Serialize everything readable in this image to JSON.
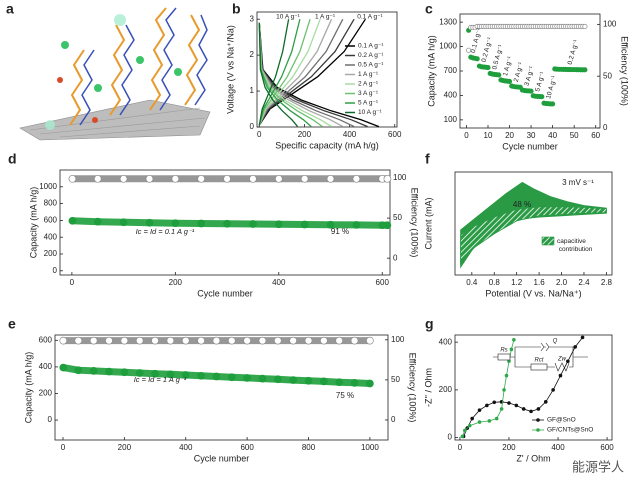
{
  "illustration": {
    "panel": "a"
  },
  "watermark": "能源学人",
  "chart_data": [
    {
      "type": "line",
      "panel": "b",
      "xlabel": "Specific capacity (mA h/g)",
      "ylabel": "Voltage (V vs Na⁺/Na)",
      "xlim": [
        -10,
        610
      ],
      "ylim": [
        0,
        3.2
      ],
      "xticks": [
        0,
        200,
        400,
        600
      ],
      "yticks": [
        0,
        1,
        2,
        3
      ],
      "legend": "right",
      "annotations": [
        "10 A g⁻¹",
        "1 A g⁻¹",
        "0.1 A g⁻¹"
      ],
      "series": [
        {
          "name": "0.1 A g⁻¹",
          "color": "#000000",
          "x": [
            0,
            16,
            80,
            186,
            318,
            451,
            530,
            null,
            0,
            47,
            141,
            259,
            376,
            470
          ],
          "values": [
            2.9,
            1.6,
            1.1,
            0.75,
            0.45,
            0.2,
            0.01,
            null,
            0.05,
            0.5,
            0.9,
            1.4,
            2.1,
            3.0
          ]
        },
        {
          "name": "0.2 A g⁻¹",
          "color": "#3a3a3a",
          "x": [
            0,
            14,
            72,
            168,
            288,
            408,
            480,
            null,
            0,
            42,
            126,
            231,
            336,
            420
          ],
          "values": [
            2.9,
            1.6,
            1.1,
            0.75,
            0.45,
            0.2,
            0.01,
            null,
            0.05,
            0.5,
            0.9,
            1.4,
            2.1,
            3.0
          ]
        },
        {
          "name": "0.5 A g⁻¹",
          "color": "#6e6e6e",
          "x": [
            0,
            13,
            63,
            147,
            252,
            357,
            420,
            null,
            0,
            37,
            111,
            204,
            296,
            370
          ],
          "values": [
            2.9,
            1.6,
            1.1,
            0.75,
            0.45,
            0.2,
            0.01,
            null,
            0.05,
            0.5,
            0.9,
            1.4,
            2.1,
            3.0
          ]
        },
        {
          "name": "1 A g⁻¹",
          "color": "#a8a8a8",
          "x": [
            0,
            11,
            56,
            130,
            222,
            315,
            370,
            null,
            0,
            32,
            96,
            176,
            256,
            320
          ],
          "values": [
            2.9,
            1.6,
            1.1,
            0.75,
            0.45,
            0.2,
            0.01,
            null,
            0.05,
            0.5,
            0.9,
            1.4,
            2.1,
            3.0
          ]
        },
        {
          "name": "2 A g⁻¹",
          "color": "#a6dca0",
          "x": [
            0,
            10,
            48,
            112,
            192,
            272,
            320,
            null,
            0,
            27,
            81,
            149,
            216,
            270
          ],
          "values": [
            2.9,
            1.6,
            1.1,
            0.75,
            0.45,
            0.2,
            0.01,
            null,
            0.05,
            0.5,
            0.9,
            1.4,
            2.1,
            3.0
          ]
        },
        {
          "name": "3 A g⁻¹",
          "color": "#6cc070",
          "x": [
            0,
            8,
            42,
            98,
            168,
            238,
            280,
            null,
            0,
            23,
            68,
            124,
            180,
            225
          ],
          "values": [
            2.9,
            1.6,
            1.1,
            0.75,
            0.45,
            0.2,
            0.01,
            null,
            0.05,
            0.5,
            0.9,
            1.4,
            2.1,
            3.0
          ]
        },
        {
          "name": "5 A g⁻¹",
          "color": "#2f9e46",
          "x": [
            0,
            7,
            35,
            81,
            138,
            196,
            230,
            null,
            0,
            18,
            54,
            99,
            144,
            180
          ],
          "values": [
            2.9,
            1.6,
            1.1,
            0.75,
            0.45,
            0.2,
            0.01,
            null,
            0.05,
            0.5,
            0.9,
            1.4,
            2.1,
            3.0
          ]
        },
        {
          "name": "10 A g⁻¹",
          "color": "#0b6b2a",
          "x": [
            0,
            5,
            26,
            60,
            102,
            145,
            170,
            null,
            0,
            13,
            39,
            72,
            104,
            130
          ],
          "values": [
            2.9,
            1.6,
            1.1,
            0.75,
            0.45,
            0.2,
            0.01,
            null,
            0.05,
            0.5,
            0.9,
            1.4,
            2.1,
            3.0
          ]
        }
      ]
    },
    {
      "type": "scatter",
      "panel": "c",
      "xlabel": "Cycle number",
      "ylabel": "Capacity (mA h/g)",
      "y2label": "Efficiency (100%)",
      "xlim": [
        -3,
        62
      ],
      "ylim": [
        0,
        1400
      ],
      "y2lim": [
        0,
        110
      ],
      "xticks": [
        0,
        10,
        20,
        30,
        40,
        50,
        60
      ],
      "yticks": [
        100,
        400,
        700,
        1000,
        1300
      ],
      "y2ticks": [
        0,
        50,
        100
      ],
      "annotations": [
        "0.1 A g⁻¹",
        "0.2 A g⁻¹",
        "0.5 A g⁻¹",
        "1 A g⁻¹",
        "2 A g⁻¹",
        "3 A g⁻¹",
        "5 A g⁻¹",
        "10 A g⁻¹",
        "0.2 A g⁻¹"
      ],
      "x": [
        1,
        2,
        3,
        4,
        5,
        6,
        7,
        8,
        9,
        10,
        11,
        12,
        13,
        14,
        15,
        16,
        17,
        18,
        19,
        20,
        21,
        22,
        23,
        24,
        25,
        26,
        27,
        28,
        29,
        30,
        31,
        32,
        33,
        34,
        35,
        36,
        37,
        38,
        39,
        40,
        41,
        42,
        43,
        44,
        45,
        46,
        47,
        48,
        49,
        50,
        51,
        52,
        53,
        54,
        55
      ],
      "series": [
        {
          "color": "#1e9e3c",
          "values": [
            1200,
            870,
            860,
            855,
            850,
            760,
            752,
            748,
            745,
            742,
            670,
            662,
            658,
            655,
            652,
            590,
            582,
            578,
            575,
            572,
            515,
            508,
            505,
            502,
            500,
            465,
            460,
            457,
            455,
            453,
            395,
            390,
            388,
            386,
            385,
            305,
            300,
            298,
            296,
            295,
            725,
            722,
            720,
            720,
            719,
            719,
            718,
            718,
            717,
            717,
            716,
            716,
            715,
            715,
            714
          ]
        },
        {
          "color": "#8c8c8c",
          "axis": "y2",
          "values": [
            75,
            97,
            97,
            97,
            98,
            98,
            98,
            98,
            98,
            98,
            98,
            98,
            98,
            98,
            98,
            98,
            98,
            98,
            98,
            98,
            98,
            98,
            98,
            98,
            98,
            98,
            98,
            98,
            98,
            98,
            98,
            98,
            98,
            98,
            98,
            98,
            98,
            98,
            98,
            98,
            98,
            98,
            98,
            98,
            98,
            98,
            98,
            98,
            98,
            98,
            98,
            98,
            98,
            98,
            98
          ]
        }
      ]
    },
    {
      "type": "scatter",
      "panel": "d",
      "xlabel": "Cycle number",
      "ylabel": "Capacity (mA h/g)",
      "y2label": "Efficiency (100%)",
      "xlim": [
        -23,
        615
      ],
      "ylim": [
        -50,
        1200
      ],
      "y2lim": [
        -21,
        110
      ],
      "xticks": [
        0,
        200,
        400,
        600
      ],
      "yticks": [
        0,
        200,
        400,
        600,
        800,
        1000
      ],
      "y2ticks": [
        0,
        50,
        100
      ],
      "connected": true,
      "annotations": [
        "Ic = Id = 0.1 A g⁻¹",
        "91 %"
      ],
      "x": [
        1,
        50,
        100,
        150,
        200,
        250,
        300,
        350,
        400,
        450,
        500,
        550,
        600,
        610
      ],
      "series": [
        {
          "color": "#1e9e3c",
          "values": [
            595,
            585,
            578,
            572,
            567,
            563,
            560,
            557,
            554,
            551,
            548,
            546,
            543,
            542
          ]
        },
        {
          "color": "#8c8c8c",
          "axis": "y2",
          "values": [
            99,
            99,
            99,
            99,
            99,
            99,
            99,
            99,
            99,
            99,
            99,
            99,
            99,
            99
          ]
        }
      ]
    },
    {
      "type": "scatter",
      "panel": "e",
      "xlabel": "Cycle number",
      "ylabel": "Capacity (mA h/g)",
      "y2label": "Efficiency (100%)",
      "xlim": [
        -26,
        1059
      ],
      "ylim": [
        -150,
        640
      ],
      "y2lim": [
        -25,
        106
      ],
      "xticks": [
        0,
        200,
        400,
        600,
        800,
        1000
      ],
      "yticks": [
        0,
        200,
        400,
        600
      ],
      "y2ticks": [
        0,
        50,
        100
      ],
      "connected": true,
      "annotations": [
        "Ic = Id = 1 A g⁻¹",
        "75 %"
      ],
      "x": [
        1,
        50,
        100,
        150,
        200,
        250,
        300,
        350,
        400,
        450,
        500,
        550,
        600,
        650,
        700,
        750,
        800,
        850,
        900,
        950,
        1000
      ],
      "series": [
        {
          "color": "#1e9e3c",
          "values": [
            395,
            375,
            370,
            365,
            360,
            354,
            349,
            344,
            339,
            333,
            328,
            322,
            317,
            312,
            307,
            301,
            296,
            291,
            285,
            280,
            275
          ]
        },
        {
          "color": "#8c8c8c",
          "axis": "y2",
          "values": [
            99,
            99,
            99,
            99,
            99,
            99,
            99,
            99,
            99,
            99,
            99,
            99,
            99,
            99,
            99,
            99,
            99,
            99,
            99,
            99,
            99
          ]
        }
      ]
    },
    {
      "type": "area",
      "panel": "f",
      "xlabel": "Potential (V vs. Na/Na⁺)",
      "ylabel": "Current  (mA)",
      "xlim": [
        0.1,
        2.9
      ],
      "ylim": [
        -4.5,
        3.5
      ],
      "xticks": [
        0.4,
        0.8,
        1.2,
        1.6,
        {
          "value": 2,
          "label": "2.0"
        },
        2.4,
        2.8
      ],
      "annotations": [
        "3 mV s⁻¹",
        "48 %"
      ],
      "series": [
        {
          "color": "#2a9a45",
          "fill": "solid",
          "x": [
            0.2,
            0.4,
            0.6,
            0.8,
            1.0,
            1.2,
            1.3,
            1.5,
            1.8,
            2.1,
            2.4,
            2.8,
            2.8,
            2.4,
            2.0,
            1.6,
            1.2,
            0.8,
            0.6,
            0.4,
            0.2
          ],
          "values": [
            -1.0,
            -0.3,
            0.4,
            1.1,
            1.8,
            2.4,
            2.7,
            2.2,
            1.6,
            1.2,
            0.9,
            0.7,
            0.3,
            0.2,
            0.1,
            0.0,
            -0.2,
            -0.9,
            -1.6,
            -2.6,
            -3.9
          ]
        },
        {
          "name": "capacitive contribution",
          "color": "#2a9a45",
          "fill": "hatch",
          "x": [
            0.2,
            0.4,
            0.8,
            1.2,
            1.6,
            2.0,
            2.4,
            2.8,
            2.8,
            2.4,
            2.0,
            1.6,
            1.2,
            0.8,
            0.4,
            0.2
          ],
          "values": [
            -1.4,
            -0.8,
            0.0,
            0.6,
            0.8,
            0.8,
            0.75,
            0.65,
            0.35,
            0.3,
            0.2,
            0.1,
            -0.3,
            -1.3,
            -2.5,
            -3.6
          ]
        }
      ]
    },
    {
      "type": "line",
      "panel": "g",
      "xlabel": "Z' / Ohm",
      "ylabel": "-Z'' / Ohm",
      "markers": true,
      "xlim": [
        -20,
        620
      ],
      "ylim": [
        -10,
        430
      ],
      "xticks": [
        0,
        200,
        400,
        600
      ],
      "yticks": [
        0,
        200,
        400
      ],
      "legend": "lower right",
      "circuit_labels": [
        "Rs",
        "Rct",
        "Zw",
        "Q"
      ],
      "series": [
        {
          "name": "GF@SnO",
          "color": "#111111",
          "x": [
            15,
            30,
            50,
            80,
            110,
            140,
            170,
            200,
            230,
            260,
            290,
            320,
            350,
            380,
            410,
            440,
            470,
            500
          ],
          "values": [
            5,
            40,
            80,
            115,
            135,
            148,
            150,
            145,
            135,
            120,
            110,
            120,
            150,
            200,
            260,
            320,
            380,
            420
          ]
        },
        {
          "name": "GF/CNTs@SnO",
          "color": "#2fa84a",
          "x": [
            10,
            20,
            40,
            80,
            120,
            150,
            170,
            180,
            190,
            200,
            210,
            220
          ],
          "values": [
            5,
            30,
            50,
            65,
            70,
            80,
            120,
            200,
            260,
            320,
            370,
            410
          ]
        }
      ]
    }
  ]
}
